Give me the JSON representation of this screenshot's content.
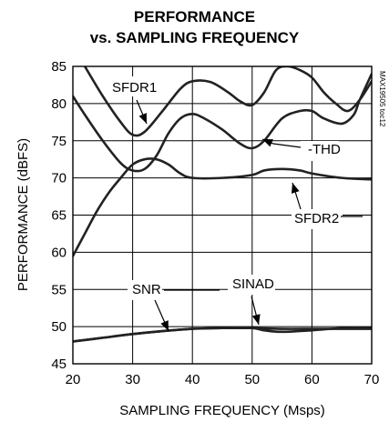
{
  "chart_data": {
    "type": "line",
    "title": "PERFORMANCE",
    "subtitle": "vs. SAMPLING FREQUENCY",
    "xlabel": "SAMPLING FREQUENCY (Msps)",
    "ylabel": "PERFORMANCE (dBFS)",
    "xlim": [
      20,
      70
    ],
    "ylim": [
      45,
      85
    ],
    "xticks": [
      20,
      30,
      40,
      50,
      60,
      70
    ],
    "yticks": [
      45,
      50,
      55,
      60,
      65,
      70,
      75,
      80,
      85
    ],
    "grid": true,
    "figure_code": "MAX19505 toc12",
    "series": [
      {
        "name": "SFDR1",
        "x": [
          22,
          25,
          28,
          30,
          32,
          35,
          38,
          40,
          43,
          46,
          48,
          50,
          52,
          54,
          56,
          58,
          60,
          62,
          64,
          66,
          68,
          70
        ],
        "y": [
          85,
          81,
          77.5,
          75.8,
          76.2,
          79,
          82,
          83,
          82.9,
          81.5,
          80.3,
          79.8,
          81.5,
          84.5,
          85,
          84.5,
          83.5,
          81.5,
          80,
          79,
          80.5,
          83
        ]
      },
      {
        "name": "-THD",
        "x": [
          20,
          22,
          25,
          28,
          30,
          32,
          34,
          36,
          38,
          40,
          42,
          45,
          48,
          50,
          52,
          55,
          58,
          60,
          62,
          65,
          67,
          68,
          70
        ],
        "y": [
          81,
          78.5,
          75,
          72,
          71,
          71.2,
          73,
          76,
          78,
          78.6,
          78,
          76.5,
          74.6,
          74,
          75,
          78,
          79,
          79,
          78,
          77.3,
          78.5,
          80.5,
          84
        ]
      },
      {
        "name": "SFDR2",
        "x": [
          20,
          22,
          24,
          26,
          28,
          30,
          32,
          34,
          36,
          38,
          40,
          45,
          50,
          52,
          55,
          58,
          60,
          65,
          70
        ],
        "y": [
          59.5,
          62.5,
          65.5,
          68,
          70,
          71.8,
          72.5,
          72.5,
          71.8,
          70.6,
          70,
          70,
          70.4,
          71,
          71.2,
          71,
          70.6,
          70,
          69.8
        ]
      },
      {
        "name": "SNR",
        "x": [
          20,
          25,
          30,
          35,
          40,
          45,
          50,
          55,
          60,
          65,
          70
        ],
        "y": [
          48,
          48.5,
          49,
          49.4,
          49.7,
          49.8,
          49.8,
          49.7,
          49.7,
          49.7,
          49.7
        ]
      },
      {
        "name": "SINAD",
        "x": [
          20,
          25,
          30,
          35,
          40,
          45,
          50,
          52,
          55,
          60,
          65,
          70
        ],
        "y": [
          48,
          48.5,
          49,
          49.4,
          49.7,
          49.8,
          49.8,
          49.5,
          49.3,
          49.5,
          49.8,
          49.8
        ]
      }
    ],
    "annotations": [
      {
        "text": "SFDR1",
        "series": "SFDR1"
      },
      {
        "text": "-THD",
        "series": "-THD"
      },
      {
        "text": "SFDR2",
        "series": "SFDR2"
      },
      {
        "text": "SNR",
        "series": "SNR"
      },
      {
        "text": "SINAD",
        "series": "SINAD"
      }
    ]
  }
}
